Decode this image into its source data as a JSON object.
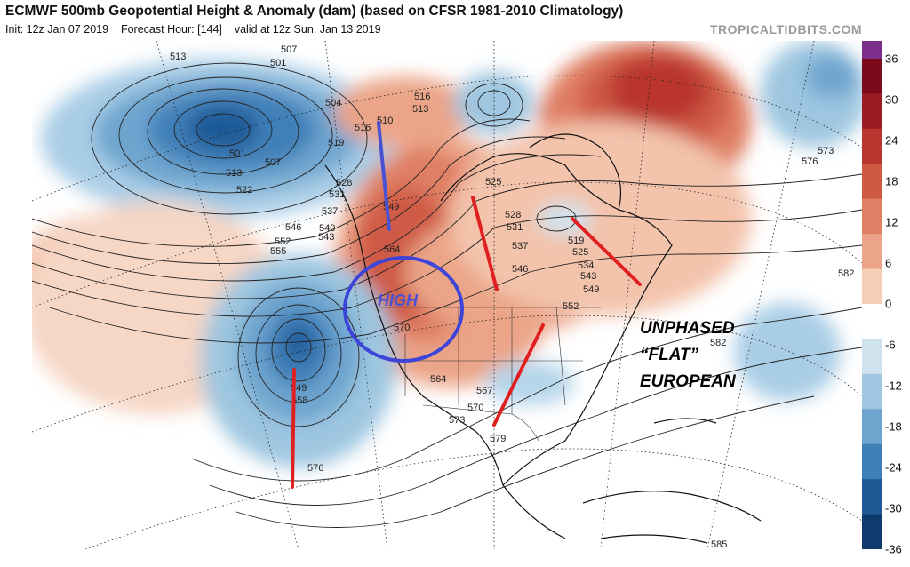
{
  "header": {
    "title": "ECMWF 500mb Geopotential Height & Anomaly (dam) (based on CFSR 1981-2010 Climatology)",
    "subtitle_parts": [
      "Init: 12z Jan 07 2019",
      "Forecast Hour: [144]",
      "valid at 12z Sun, Jan 13 2019"
    ],
    "brand": "TROPICALTIDBITS.COM"
  },
  "colorbar": {
    "ticks": [
      "36",
      "30",
      "24",
      "18",
      "12",
      "6",
      "0",
      "-6",
      "-12",
      "-18",
      "-24",
      "-30",
      "-36"
    ],
    "colors": [
      "#7a0a1c",
      "#9c1c24",
      "#b9352f",
      "#cf5a44",
      "#df7f63",
      "#eba488",
      "#f6cdb7",
      "#ffffff",
      "#cfe3ef",
      "#9ec6e0",
      "#6ea5cf",
      "#3f7fb8",
      "#1f5a97",
      "#0f3a6e"
    ],
    "top_color": "#7b2f8a"
  },
  "annotations": {
    "high_label": "HIGH",
    "unphased": "UNPHASED",
    "flat": "“FLAT”",
    "european": "EUROPEAN"
  },
  "contour_labels": [
    "513",
    "507",
    "501",
    "504",
    "510",
    "516",
    "519",
    "516",
    "513",
    "528",
    "531",
    "537",
    "540",
    "543",
    "546",
    "552",
    "555",
    "501",
    "507",
    "513",
    "522",
    "549",
    "564",
    "570",
    "525",
    "528",
    "531",
    "537",
    "546",
    "519",
    "525",
    "534",
    "543",
    "549",
    "552",
    "549",
    "558",
    "564",
    "567",
    "570",
    "573",
    "576",
    "579",
    "582",
    "582",
    "576",
    "573",
    "585"
  ]
}
